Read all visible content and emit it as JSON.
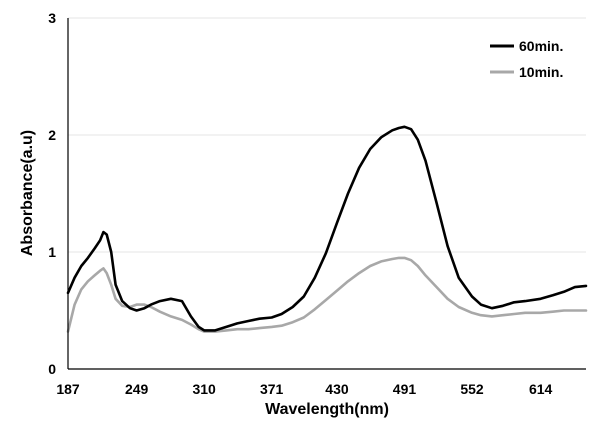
{
  "chart_data": {
    "type": "line",
    "title": "",
    "xlabel": "Wavelength(nm)",
    "ylabel": "Absorbance(a.u)",
    "xlim": [
      187,
      655
    ],
    "ylim": [
      0,
      3
    ],
    "xticks": [
      "187",
      "249",
      "310",
      "371",
      "430",
      "491",
      "552",
      "614"
    ],
    "yticks": [
      "0",
      "1",
      "2",
      "3"
    ],
    "grid": true,
    "legend_position": "top-right",
    "series": [
      {
        "name": "60min.",
        "color": "#000000",
        "x": [
          187,
          193,
          199,
          205,
          211,
          216,
          219,
          222,
          226,
          230,
          236,
          243,
          249,
          256,
          262,
          270,
          280,
          290,
          298,
          305,
          310,
          320,
          330,
          340,
          350,
          360,
          371,
          380,
          390,
          400,
          410,
          420,
          430,
          440,
          450,
          460,
          470,
          480,
          486,
          491,
          497,
          503,
          510,
          520,
          530,
          540,
          552,
          560,
          570,
          580,
          590,
          600,
          614,
          625,
          635,
          645,
          655
        ],
        "y": [
          0.65,
          0.78,
          0.88,
          0.95,
          1.03,
          1.1,
          1.17,
          1.15,
          1.0,
          0.72,
          0.58,
          0.52,
          0.5,
          0.52,
          0.55,
          0.58,
          0.6,
          0.58,
          0.45,
          0.36,
          0.33,
          0.33,
          0.36,
          0.39,
          0.41,
          0.43,
          0.44,
          0.47,
          0.53,
          0.62,
          0.78,
          0.99,
          1.25,
          1.5,
          1.72,
          1.88,
          1.98,
          2.04,
          2.06,
          2.07,
          2.05,
          1.96,
          1.78,
          1.42,
          1.05,
          0.78,
          0.62,
          0.55,
          0.52,
          0.54,
          0.57,
          0.58,
          0.6,
          0.63,
          0.66,
          0.7,
          0.71
        ]
      },
      {
        "name": "10min.",
        "color": "#a8a8a8",
        "x": [
          187,
          193,
          199,
          205,
          211,
          216,
          219,
          222,
          226,
          230,
          236,
          243,
          249,
          256,
          262,
          270,
          280,
          290,
          298,
          305,
          310,
          320,
          330,
          340,
          350,
          360,
          371,
          380,
          390,
          400,
          410,
          420,
          430,
          440,
          450,
          460,
          470,
          480,
          486,
          491,
          497,
          503,
          510,
          520,
          530,
          540,
          552,
          560,
          570,
          580,
          590,
          600,
          614,
          625,
          635,
          645,
          655
        ],
        "y": [
          0.32,
          0.55,
          0.68,
          0.75,
          0.8,
          0.84,
          0.86,
          0.82,
          0.72,
          0.6,
          0.54,
          0.53,
          0.55,
          0.55,
          0.53,
          0.49,
          0.45,
          0.42,
          0.38,
          0.34,
          0.32,
          0.32,
          0.33,
          0.34,
          0.34,
          0.35,
          0.36,
          0.37,
          0.4,
          0.44,
          0.51,
          0.59,
          0.67,
          0.75,
          0.82,
          0.88,
          0.92,
          0.94,
          0.95,
          0.95,
          0.93,
          0.88,
          0.8,
          0.7,
          0.6,
          0.53,
          0.48,
          0.46,
          0.45,
          0.46,
          0.47,
          0.48,
          0.48,
          0.49,
          0.5,
          0.5,
          0.5
        ]
      }
    ]
  }
}
